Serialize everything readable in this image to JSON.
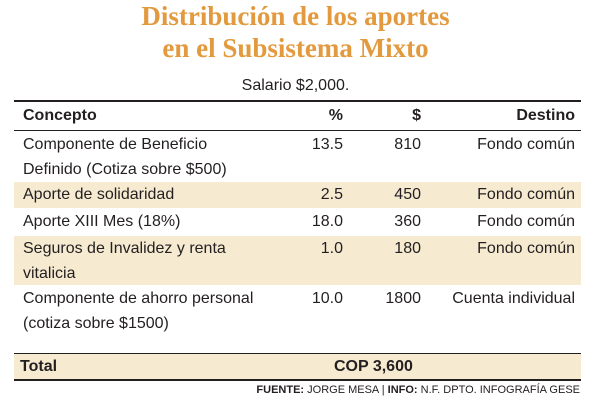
{
  "title_line1": "Distribución de los aportes",
  "title_line2": "en el Subsistema Mixto",
  "subtitle": "Salario $2,000.",
  "colors": {
    "title": "#e39a3e",
    "shade": "#f6ead1",
    "text": "#231f20"
  },
  "table": {
    "headers": {
      "concept": "Concepto",
      "pct": "%",
      "amount": "$",
      "destination": "Destino"
    },
    "rows": [
      {
        "concept_lines": [
          "Componente de Beneficio",
          "Definido (Cotiza sobre $500)"
        ],
        "pct": "13.5",
        "amount": "810",
        "destination": "Fondo común"
      },
      {
        "concept_lines": [
          "Aporte de solidaridad"
        ],
        "pct": "2.5",
        "amount": "450",
        "destination": "Fondo común"
      },
      {
        "concept_lines": [
          "Aporte XIII Mes (18%)"
        ],
        "pct": "18.0",
        "amount": "360",
        "destination": "Fondo común"
      },
      {
        "concept_lines": [
          "Seguros de Invalidez y renta",
          "vitalicia"
        ],
        "pct": "1.0",
        "amount": "180",
        "destination": "Fondo común"
      },
      {
        "concept_lines": [
          "Componente de ahorro personal",
          "(cotiza sobre $1500)"
        ],
        "pct": "10.0",
        "amount": "1800",
        "destination": "Cuenta individual"
      }
    ],
    "total": {
      "label": "Total",
      "value": "COP 3,600"
    }
  },
  "source": {
    "fuente_label": "FUENTE:",
    "fuente_value": "JORGE MESA",
    "separator": "|",
    "info_label": "INFO:",
    "info_value": "N.F. DPTO. INFOGRAFÍA GESE"
  }
}
